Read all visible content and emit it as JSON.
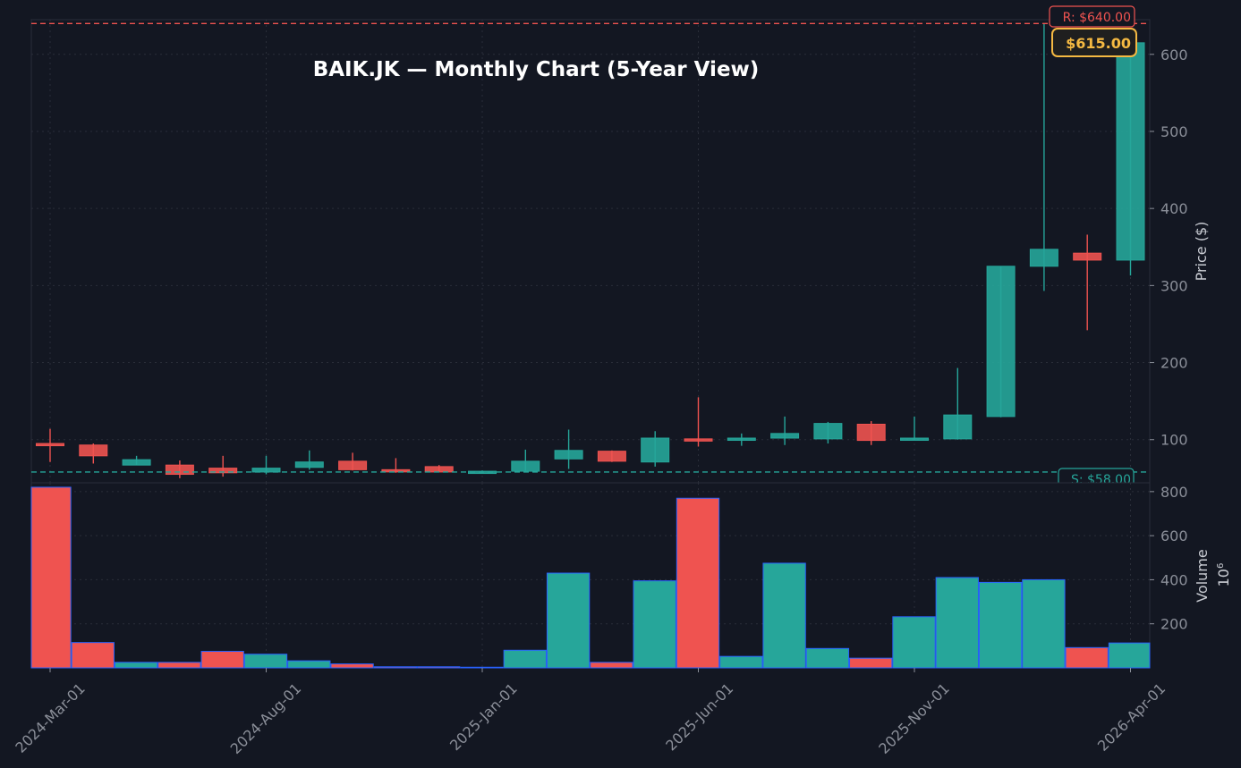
{
  "chart_data": {
    "type": "candlestick",
    "title": "BAIK.JK — Monthly Chart (5-Year View)",
    "ylabel_price": "Price ($)",
    "ylabel_volume": "Volume",
    "volume_multiplier_label": "10",
    "volume_multiplier_exp": "6",
    "price_ylim": [
      44,
      645
    ],
    "volume_ylim": [
      0,
      840
    ],
    "price_ticks": [
      "100",
      "200",
      "300",
      "400",
      "500",
      "600"
    ],
    "price_tick_values": [
      100,
      200,
      300,
      400,
      500,
      600
    ],
    "volume_ticks": [
      "200",
      "400",
      "600",
      "800"
    ],
    "volume_tick_values": [
      200,
      400,
      600,
      800
    ],
    "x_tick_labels": [
      "2024-Mar-01",
      "2024-Aug-01",
      "2025-Jan-01",
      "2025-Jun-01",
      "2025-Nov-01",
      "2026-Apr-01"
    ],
    "x_tick_index": [
      0,
      5,
      10,
      15,
      20,
      25
    ],
    "resistance": {
      "label": "R: $640.00",
      "value": 640
    },
    "support": {
      "label": "S: $58.00",
      "value": 58
    },
    "last_price": {
      "label": "$615.00",
      "value": 615
    },
    "colors": {
      "up": "#26a69a",
      "down": "#ef5350",
      "resistance": "#ef5350",
      "support": "#26a69a",
      "last": "#f5b942",
      "volume_edge": "#2962ff"
    },
    "candles": [
      {
        "date": "2024-Mar",
        "open": 95,
        "high": 114,
        "low": 71,
        "close": 93
      },
      {
        "date": "2024-Apr",
        "open": 93,
        "high": 95,
        "low": 69,
        "close": 79
      },
      {
        "date": "2024-May",
        "open": 67,
        "high": 79,
        "low": 67,
        "close": 74
      },
      {
        "date": "2024-Jun",
        "open": 67,
        "high": 73,
        "low": 50,
        "close": 55
      },
      {
        "date": "2024-Jul",
        "open": 63,
        "high": 79,
        "low": 52,
        "close": 57
      },
      {
        "date": "2024-Aug",
        "open": 58,
        "high": 79,
        "low": 55,
        "close": 63
      },
      {
        "date": "2024-Sep",
        "open": 64,
        "high": 86,
        "low": 61,
        "close": 71
      },
      {
        "date": "2024-Oct",
        "open": 72,
        "high": 83,
        "low": 60,
        "close": 61
      },
      {
        "date": "2024-Nov",
        "open": 61,
        "high": 76,
        "low": 57,
        "close": 59
      },
      {
        "date": "2024-Dec",
        "open": 65,
        "high": 67,
        "low": 58,
        "close": 58
      },
      {
        "date": "2025-Jan",
        "open": 58,
        "high": 60,
        "low": 57,
        "close": 59
      },
      {
        "date": "2025-Feb",
        "open": 59,
        "high": 87,
        "low": 58,
        "close": 72
      },
      {
        "date": "2025-Mar",
        "open": 75,
        "high": 113,
        "low": 62,
        "close": 86
      },
      {
        "date": "2025-Apr",
        "open": 85,
        "high": 86,
        "low": 71,
        "close": 72
      },
      {
        "date": "2025-May",
        "open": 71,
        "high": 111,
        "low": 65,
        "close": 102
      },
      {
        "date": "2025-Jun",
        "open": 101,
        "high": 155,
        "low": 91,
        "close": 100
      },
      {
        "date": "2025-Jul",
        "open": 100,
        "high": 108,
        "low": 92,
        "close": 102
      },
      {
        "date": "2025-Aug",
        "open": 102,
        "high": 130,
        "low": 93,
        "close": 108
      },
      {
        "date": "2025-Sep",
        "open": 101,
        "high": 123,
        "low": 95,
        "close": 121
      },
      {
        "date": "2025-Oct",
        "open": 120,
        "high": 124,
        "low": 93,
        "close": 99
      },
      {
        "date": "2025-Nov",
        "open": 100,
        "high": 130,
        "low": 99,
        "close": 102
      },
      {
        "date": "2025-Dec",
        "open": 101,
        "high": 193,
        "low": 100,
        "close": 132
      },
      {
        "date": "2026-Jan",
        "open": 130,
        "high": 325,
        "low": 129,
        "close": 325
      },
      {
        "date": "2026-Feb",
        "open": 325,
        "high": 640,
        "low": 293,
        "close": 347
      },
      {
        "date": "2026-Mar",
        "open": 342,
        "high": 366,
        "low": 242,
        "close": 333
      },
      {
        "date": "2026-Apr",
        "open": 333,
        "high": 616,
        "low": 313,
        "close": 615
      }
    ],
    "volume": [
      820,
      115,
      25,
      25,
      75,
      62,
      32,
      18,
      5,
      5,
      3,
      80,
      430,
      25,
      395,
      770,
      52,
      475,
      88,
      44,
      232,
      410,
      388,
      400,
      92,
      113
    ],
    "grid": true,
    "last_price_badge_position": "top-right",
    "resistance_label_position": "top-right",
    "support_label_position": "bottom-right"
  }
}
